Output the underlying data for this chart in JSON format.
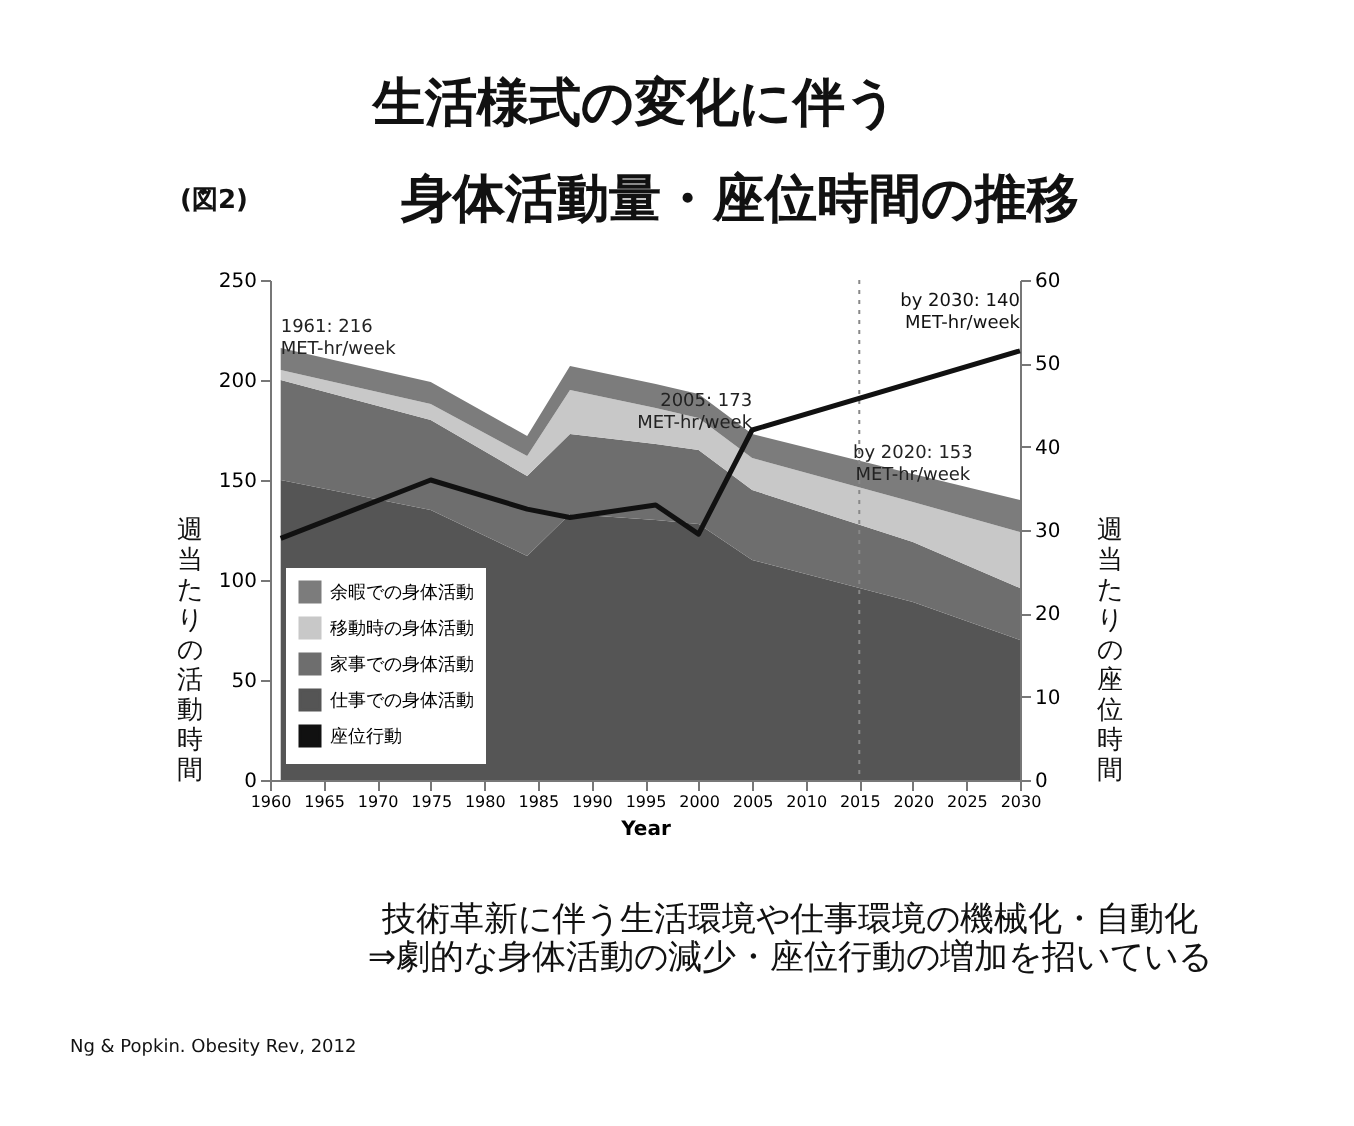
{
  "chart_data": {
    "type": "area",
    "stacked": true,
    "title": "生活様式の変化に伴う",
    "subtitle": "身体活動量・座位時間の推移",
    "xlabel": "Year",
    "ylabel": "週当たりの活動時間",
    "y2label": "週当たりの座位時間",
    "x": [
      1961,
      1975,
      1984,
      1988,
      1996,
      2000,
      2005,
      2020,
      2030
    ],
    "series": [
      {
        "name": "仕事での身体活動",
        "color": "#555555",
        "values": [
          150,
          135,
          112,
          133,
          130,
          128,
          110,
          89,
          70
        ]
      },
      {
        "name": "家事での身体活動",
        "color": "#6e6e6e",
        "values": [
          50,
          45,
          40,
          40,
          38,
          37,
          35,
          30,
          26
        ]
      },
      {
        "name": "移動時の身体活動",
        "color": "#c8c8c8",
        "values": [
          5,
          8,
          10,
          22,
          18,
          16,
          16,
          20,
          28
        ]
      },
      {
        "name": "余暇での身体活動",
        "color": "#7c7c7c",
        "values": [
          11,
          11,
          10,
          12,
          12,
          12,
          12,
          14,
          16
        ]
      },
      {
        "name": "座位行動",
        "type": "line",
        "axis": "y2",
        "color": "#111111",
        "x": [
          1961,
          1975,
          1984,
          1988,
          1996,
          2000,
          2005,
          2030
        ],
        "values": [
          29,
          36,
          32.5,
          31.5,
          33,
          29.5,
          42,
          51.5
        ]
      }
    ],
    "xlim": [
      1960,
      2030
    ],
    "xticks": [
      1960,
      1965,
      1970,
      1975,
      1980,
      1985,
      1990,
      1995,
      2000,
      2005,
      2010,
      2015,
      2020,
      2025,
      2030
    ],
    "ylim": [
      0,
      250
    ],
    "yticks": [
      0,
      50,
      100,
      150,
      200,
      250
    ],
    "y2lim": [
      0,
      60
    ],
    "y2ticks": [
      0,
      10,
      20,
      30,
      40,
      50,
      60
    ],
    "ref_lines": [
      {
        "axis": "x",
        "value": 2015,
        "label": null,
        "color": "#888888",
        "line_style": "dotted"
      }
    ],
    "legend": "bottom left",
    "grid": false,
    "annotations": [
      {
        "text": "1961: 216\nMET-hr/week",
        "x": 1961,
        "y": 216
      },
      {
        "text": "2005: 173\nMET-hr/week",
        "x": 2005,
        "y": 173
      },
      {
        "text": "by 2020: 153\nMET-hr/week",
        "x": 2020,
        "y": 153
      },
      "by 2030: 140\nMET-hr/week",
      "(図2)",
      "技術革新に伴う生活環境や仕事環境の機械化・自動化\n⇒劇的な身体活動の減少・座位行動の増加を招いている",
      "Ng & Popkin. Obesity Rev, 2012"
    ]
  }
}
